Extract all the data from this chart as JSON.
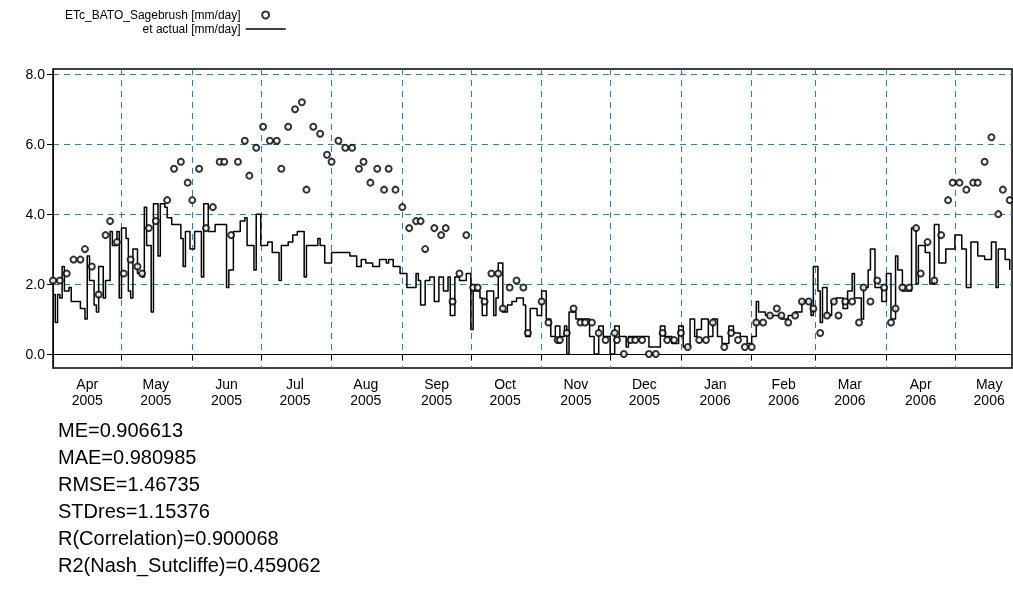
{
  "chart_data": {
    "type": "scatter",
    "xlim": [
      "2005-04-01",
      "2006-05-26"
    ],
    "xticks": [
      {
        "value": "2005-04-01",
        "label": null
      },
      {
        "value": "2005-04-16",
        "label": "Apr\n2005"
      },
      {
        "value": "2005-05-01",
        "label": null
      },
      {
        "value": "2005-05-16",
        "label": "May\n2005"
      },
      {
        "value": "2005-06-01",
        "label": null
      },
      {
        "value": "2005-06-16",
        "label": "Jun\n2005"
      },
      {
        "value": "2005-07-01",
        "label": null
      },
      {
        "value": "2005-07-16",
        "label": "Jul\n2005"
      },
      {
        "value": "2005-08-01",
        "label": null
      },
      {
        "value": "2005-08-16",
        "label": "Aug\n2005"
      },
      {
        "value": "2005-09-01",
        "label": null
      },
      {
        "value": "2005-09-16",
        "label": "Sep\n2005"
      },
      {
        "value": "2005-10-01",
        "label": null
      },
      {
        "value": "2005-10-16",
        "label": "Oct\n2005"
      },
      {
        "value": "2005-11-01",
        "label": null
      },
      {
        "value": "2005-11-16",
        "label": "Nov\n2005"
      },
      {
        "value": "2005-12-01",
        "label": null
      },
      {
        "value": "2005-12-16",
        "label": "Dec\n2005"
      },
      {
        "value": "2006-01-01",
        "label": null
      },
      {
        "value": "2006-01-16",
        "label": "Jan\n2006"
      },
      {
        "value": "2006-02-01",
        "label": null
      },
      {
        "value": "2006-02-15",
        "label": "Feb\n2006"
      },
      {
        "value": "2006-03-01",
        "label": null
      },
      {
        "value": "2006-03-16",
        "label": "Mar\n2006"
      },
      {
        "value": "2006-04-01",
        "label": null
      },
      {
        "value": "2006-04-16",
        "label": "Apr\n2006"
      },
      {
        "value": "2006-05-01",
        "label": null
      },
      {
        "value": "2006-05-16",
        "label": "May\n2006"
      }
    ],
    "ylim": [
      -0.4,
      8.15
    ],
    "yticks": [
      {
        "value": 0,
        "label": "0.0"
      },
      {
        "value": 2,
        "label": "2.0"
      },
      {
        "value": 4,
        "label": "4.0"
      },
      {
        "value": 6,
        "label": "6.0"
      },
      {
        "value": 8,
        "label": "8.0"
      }
    ],
    "grid": true,
    "legend": "top left",
    "series": [
      {
        "name": "ETc_BATO_Sagebrush [mm/day]",
        "type": "scatter",
        "marker": "circle",
        "color": "#000000",
        "x": [
          "2005-04-01",
          "2005-04-04",
          "2005-04-07",
          "2005-04-10",
          "2005-04-13",
          "2005-04-15",
          "2005-04-18",
          "2005-04-21",
          "2005-04-24",
          "2005-04-26",
          "2005-04-29",
          "2005-05-02",
          "2005-05-05",
          "2005-05-08",
          "2005-05-10",
          "2005-05-13",
          "2005-05-16",
          "2005-05-21",
          "2005-05-24",
          "2005-05-27",
          "2005-05-30",
          "2005-06-01",
          "2005-06-04",
          "2005-06-07",
          "2005-06-10",
          "2005-06-13",
          "2005-06-15",
          "2005-06-18",
          "2005-06-21",
          "2005-06-24",
          "2005-06-26",
          "2005-06-29",
          "2005-07-02",
          "2005-07-05",
          "2005-07-08",
          "2005-07-10",
          "2005-07-13",
          "2005-07-16",
          "2005-07-19",
          "2005-07-21",
          "2005-07-24",
          "2005-07-27",
          "2005-07-30",
          "2005-08-01",
          "2005-08-04",
          "2005-08-07",
          "2005-08-10",
          "2005-08-13",
          "2005-08-15",
          "2005-08-18",
          "2005-08-21",
          "2005-08-24",
          "2005-08-26",
          "2005-08-29",
          "2005-09-01",
          "2005-09-04",
          "2005-09-07",
          "2005-09-09",
          "2005-09-11",
          "2005-09-15",
          "2005-09-18",
          "2005-09-20",
          "2005-09-23",
          "2005-09-26",
          "2005-09-29",
          "2005-10-02",
          "2005-10-04",
          "2005-10-07",
          "2005-10-10",
          "2005-10-13",
          "2005-10-15",
          "2005-10-18",
          "2005-10-21",
          "2005-10-24",
          "2005-10-26",
          "2005-11-01",
          "2005-11-04",
          "2005-11-08",
          "2005-11-09",
          "2005-11-12",
          "2005-11-15",
          "2005-11-18",
          "2005-11-20",
          "2005-11-23",
          "2005-11-26",
          "2005-11-29",
          "2005-12-03",
          "2005-12-04",
          "2005-12-07",
          "2005-12-10",
          "2005-12-12",
          "2005-12-15",
          "2005-12-18",
          "2005-12-21",
          "2005-12-24",
          "2005-12-26",
          "2005-12-29",
          "2006-01-01",
          "2006-01-04",
          "2006-01-09",
          "2006-01-12",
          "2006-01-15",
          "2006-01-20",
          "2006-01-23",
          "2006-01-26",
          "2006-01-29",
          "2006-02-01",
          "2006-02-03",
          "2006-02-06",
          "2006-02-09",
          "2006-02-12",
          "2006-02-14",
          "2006-02-17",
          "2006-02-20",
          "2006-02-23",
          "2006-02-26",
          "2006-02-28",
          "2006-03-03",
          "2006-03-06",
          "2006-03-09",
          "2006-03-11",
          "2006-03-14",
          "2006-03-17",
          "2006-03-20",
          "2006-03-22",
          "2006-03-25",
          "2006-03-28",
          "2006-03-31",
          "2006-04-03",
          "2006-04-05",
          "2006-04-08",
          "2006-04-11",
          "2006-04-14",
          "2006-04-16",
          "2006-04-19",
          "2006-04-22",
          "2006-04-25",
          "2006-04-28",
          "2006-04-30",
          "2006-05-03",
          "2006-05-06",
          "2006-05-09",
          "2006-05-11",
          "2006-05-14",
          "2006-05-17",
          "2006-05-20",
          "2006-05-22",
          "2006-05-25"
        ],
        "values": [
          2.1,
          2.1,
          2.3,
          2.7,
          2.7,
          3.0,
          2.5,
          1.7,
          3.4,
          3.8,
          3.2,
          2.3,
          2.7,
          2.5,
          2.3,
          3.6,
          3.8,
          4.4,
          5.3,
          5.5,
          4.9,
          4.4,
          5.3,
          3.6,
          4.2,
          5.5,
          5.5,
          3.4,
          5.5,
          6.1,
          5.1,
          5.9,
          6.5,
          6.1,
          6.1,
          5.3,
          6.5,
          7.0,
          7.2,
          4.7,
          6.5,
          6.3,
          5.7,
          5.5,
          6.1,
          5.9,
          5.9,
          5.3,
          5.5,
          4.9,
          5.3,
          4.7,
          5.3,
          4.7,
          4.2,
          3.6,
          3.8,
          3.8,
          3.0,
          3.6,
          3.4,
          3.6,
          1.5,
          2.3,
          3.4,
          1.9,
          1.9,
          1.5,
          2.3,
          2.3,
          1.3,
          1.9,
          2.1,
          1.9,
          0.6,
          1.5,
          0.9,
          0.4,
          0.4,
          0.6,
          1.3,
          0.9,
          0.9,
          0.9,
          0.6,
          0.4,
          0.6,
          0.4,
          0.0,
          0.4,
          0.4,
          0.4,
          0.0,
          0.0,
          0.6,
          0.4,
          0.4,
          0.6,
          0.2,
          0.4,
          0.4,
          0.9,
          0.2,
          0.6,
          0.4,
          0.2,
          0.2,
          0.9,
          0.9,
          1.1,
          1.3,
          1.1,
          0.9,
          1.1,
          1.5,
          1.5,
          1.3,
          0.6,
          1.1,
          1.5,
          1.1,
          1.5,
          1.5,
          0.9,
          1.9,
          1.5,
          2.1,
          1.9,
          0.9,
          1.3,
          1.9,
          1.9,
          3.6,
          2.3,
          3.2,
          2.1,
          3.4,
          4.4,
          4.9,
          4.9,
          4.7,
          4.9,
          4.9,
          5.5,
          6.2,
          4.0,
          4.7,
          4.4
        ]
      },
      {
        "name": "et actual [mm/day]",
        "type": "step",
        "marker": "none",
        "line_style": "solid",
        "color": "#000000",
        "x": [
          "2005-04-01",
          "2005-04-02",
          "2005-04-03",
          "2005-04-04",
          "2005-04-05",
          "2005-04-06",
          "2005-04-08",
          "2005-04-09",
          "2005-04-13",
          "2005-04-15",
          "2005-04-16",
          "2005-04-17",
          "2005-04-19",
          "2005-04-20",
          "2005-04-21",
          "2005-04-23",
          "2005-04-24",
          "2005-04-26",
          "2005-04-27",
          "2005-04-29",
          "2005-04-30",
          "2005-05-01",
          "2005-05-03",
          "2005-05-04",
          "2005-05-05",
          "2005-05-06",
          "2005-05-08",
          "2005-05-10",
          "2005-05-11",
          "2005-05-12",
          "2005-05-14",
          "2005-05-15",
          "2005-05-17",
          "2005-05-18",
          "2005-05-20",
          "2005-05-21",
          "2005-05-23",
          "2005-05-25",
          "2005-05-27",
          "2005-05-28",
          "2005-05-29",
          "2005-05-31",
          "2005-06-02",
          "2005-06-05",
          "2005-06-06",
          "2005-06-08",
          "2005-06-11",
          "2005-06-15",
          "2005-06-16",
          "2005-06-17",
          "2005-06-19",
          "2005-06-22",
          "2005-06-24",
          "2005-06-25",
          "2005-06-28",
          "2005-06-29",
          "2005-07-01",
          "2005-07-04",
          "2005-07-06",
          "2005-07-09",
          "2005-07-10",
          "2005-07-13",
          "2005-07-15",
          "2005-07-17",
          "2005-07-20",
          "2005-07-21",
          "2005-07-23",
          "2005-07-26",
          "2005-07-27",
          "2005-07-29",
          "2005-08-01",
          "2005-08-09",
          "2005-08-12",
          "2005-08-14",
          "2005-08-16",
          "2005-08-19",
          "2005-08-22",
          "2005-08-25",
          "2005-08-26",
          "2005-08-28",
          "2005-08-31",
          "2005-09-03",
          "2005-09-07",
          "2005-09-08",
          "2005-09-09",
          "2005-09-11",
          "2005-09-13",
          "2005-09-15",
          "2005-09-17",
          "2005-09-19",
          "2005-09-21",
          "2005-09-22",
          "2005-09-24",
          "2005-09-26",
          "2005-09-29",
          "2005-10-01",
          "2005-10-02",
          "2005-10-05",
          "2005-10-06",
          "2005-10-08",
          "2005-10-11",
          "2005-10-12",
          "2005-10-13",
          "2005-10-15",
          "2005-10-17",
          "2005-10-19",
          "2005-10-21",
          "2005-10-24",
          "2005-10-25",
          "2005-10-27",
          "2005-10-30",
          "2005-11-01",
          "2005-11-03",
          "2005-11-05",
          "2005-11-07",
          "2005-11-09",
          "2005-11-11",
          "2005-11-12",
          "2005-11-13",
          "2005-11-16",
          "2005-11-20",
          "2005-11-22",
          "2005-11-24",
          "2005-11-26",
          "2005-11-28",
          "2005-12-01",
          "2005-12-03",
          "2005-12-05",
          "2005-12-08",
          "2005-12-09",
          "2005-12-12",
          "2005-12-16",
          "2005-12-18",
          "2005-12-21",
          "2005-12-23",
          "2005-12-25",
          "2005-12-28",
          "2005-12-31",
          "2006-01-02",
          "2006-01-05",
          "2006-01-07",
          "2006-01-08",
          "2006-01-10",
          "2006-01-13",
          "2006-01-15",
          "2006-01-17",
          "2006-01-19",
          "2006-01-22",
          "2006-01-24",
          "2006-01-27",
          "2006-01-30",
          "2006-02-01",
          "2006-02-03",
          "2006-02-04",
          "2006-02-07",
          "2006-02-12",
          "2006-02-14",
          "2006-02-17",
          "2006-02-20",
          "2006-02-23",
          "2006-02-26",
          "2006-02-27",
          "2006-02-28",
          "2006-03-02",
          "2006-03-03",
          "2006-03-04",
          "2006-03-06",
          "2006-03-08",
          "2006-03-10",
          "2006-03-13",
          "2006-03-15",
          "2006-03-17",
          "2006-03-18",
          "2006-03-21",
          "2006-03-22",
          "2006-03-24",
          "2006-03-25",
          "2006-03-27",
          "2006-03-30",
          "2006-04-01",
          "2006-04-03",
          "2006-04-05",
          "2006-04-06",
          "2006-04-08",
          "2006-04-11",
          "2006-04-12",
          "2006-04-14",
          "2006-04-15",
          "2006-04-18",
          "2006-04-20",
          "2006-04-22",
          "2006-04-24",
          "2006-04-27",
          "2006-05-01",
          "2006-05-04",
          "2006-05-06",
          "2006-05-08",
          "2006-05-11",
          "2006-05-14",
          "2006-05-17",
          "2006-05-19",
          "2006-05-20",
          "2006-05-23",
          "2006-05-25"
        ],
        "values": [
          1.7,
          0.9,
          1.7,
          1.6,
          2.5,
          1.8,
          1.9,
          1.5,
          1.3,
          1.0,
          2.8,
          2.1,
          1.4,
          1.2,
          2.5,
          1.6,
          2.1,
          3.5,
          3.1,
          3.5,
          1.6,
          3.6,
          3.3,
          1.8,
          1.6,
          3.0,
          2.3,
          2.2,
          4.2,
          3.1,
          1.2,
          4.3,
          2.8,
          4.3,
          4.2,
          3.9,
          3.7,
          3.7,
          3.3,
          2.5,
          3.5,
          3.0,
          3.5,
          2.2,
          4.3,
          3.5,
          3.7,
          3.7,
          1.9,
          2.4,
          3.5,
          3.8,
          3.9,
          3.1,
          2.4,
          4.0,
          3.1,
          3.2,
          2.9,
          2.1,
          3.1,
          3.2,
          3.4,
          3.5,
          2.2,
          3.1,
          3.1,
          3.3,
          3.1,
          2.6,
          2.9,
          2.8,
          2.5,
          2.7,
          2.6,
          2.5,
          2.7,
          2.6,
          2.7,
          2.5,
          2.3,
          1.9,
          2.3,
          2.1,
          1.4,
          2.1,
          2.2,
          1.5,
          2.2,
          1.8,
          2.2,
          1.1,
          2.2,
          2.1,
          2.3,
          0.7,
          1.8,
          1.6,
          1.1,
          1.8,
          1.1,
          1.6,
          2.6,
          1.2,
          1.4,
          1.5,
          1.6,
          1.4,
          0.5,
          1.3,
          1.1,
          1.8,
          1.0,
          0.5,
          0.8,
          0.5,
          0.8,
          0.0,
          1.2,
          1.0,
          1.0,
          0.5,
          0.0,
          0.8,
          0.5,
          0.0,
          0.8,
          0.5,
          0.2,
          0.5,
          0.5,
          0.5,
          0.2,
          0.2,
          0.8,
          0.5,
          0.3,
          0.8,
          0.2,
          1.0,
          0.5,
          0.7,
          1.0,
          0.5,
          1.0,
          0.5,
          0.3,
          0.8,
          0.6,
          0.5,
          0.3,
          0.5,
          1.5,
          1.2,
          1.1,
          1.1,
          1.0,
          1.1,
          1.2,
          1.5,
          1.5,
          1.1,
          2.5,
          1.8,
          0.9,
          1.9,
          1.1,
          1.5,
          1.6,
          1.3,
          1.8,
          2.3,
          1.6,
          1.0,
          1.9,
          2.4,
          3.0,
          1.9,
          1.5,
          2.3,
          1.0,
          2.8,
          2.4,
          1.8,
          1.8,
          3.6,
          2.0,
          3.1,
          2.9,
          2.0,
          3.7,
          2.6,
          3.0,
          3.4,
          3.0,
          1.9,
          3.2,
          2.8,
          2.7,
          3.2,
          1.9,
          3.0,
          2.7,
          2.4
        ]
      }
    ],
    "annotations": [
      "ME=0.906613",
      "MAE=0.980985",
      "RMSE=1.46735",
      "STDres=1.15376",
      "R(Correlation)=0.900068",
      "R2(Nash_Sutcliffe)=0.459062"
    ]
  }
}
